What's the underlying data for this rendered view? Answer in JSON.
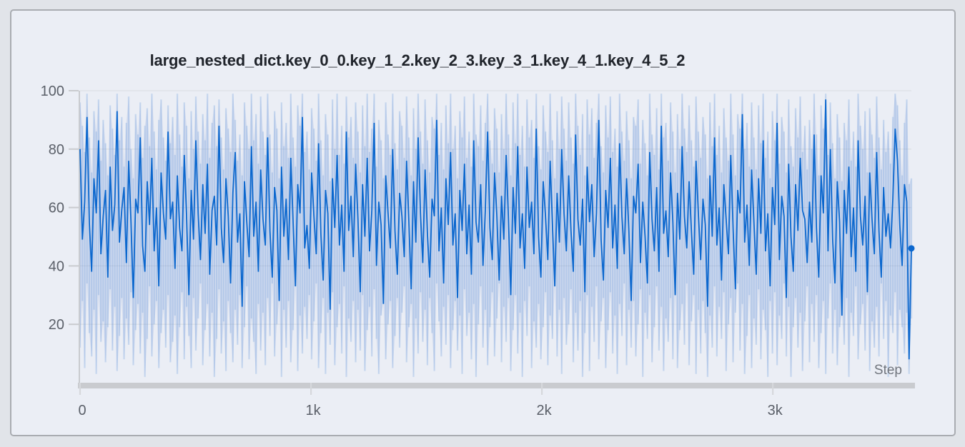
{
  "window": {
    "background": "#e1e4e9"
  },
  "panel": {
    "background": "#ebeef5",
    "border_color": "#a9acb1",
    "title": "large_nested_dict.key_0_0.key_1_2.key_2_3.key_3_1.key_4_1.key_4_5_2"
  },
  "chart_data": {
    "type": "line",
    "title": "large_nested_dict.key_0_0.key_1_2.key_2_3.key_3_1.key_4_1.key_4_5_2",
    "xlabel": "Step",
    "ylabel": "",
    "x_range": [
      0,
      3600
    ],
    "y_range": [
      0,
      100
    ],
    "grid": "horizontal",
    "legend": "none",
    "x_ticks": [
      {
        "value": 0,
        "label": "0"
      },
      {
        "value": 1000,
        "label": "1k"
      },
      {
        "value": 2000,
        "label": "2k"
      },
      {
        "value": 3000,
        "label": "3k"
      }
    ],
    "y_ticks": [
      {
        "value": 20,
        "label": "20"
      },
      {
        "value": 40,
        "label": "40"
      },
      {
        "value": 60,
        "label": "60"
      },
      {
        "value": 80,
        "label": "80"
      },
      {
        "value": 100,
        "label": "100"
      }
    ],
    "line_color": "#0b67ce",
    "band_fill": "rgba(80,130,205,0.15)",
    "band_stripe": "rgba(30,108,208,0.17)",
    "axis_color": "#c9cbcf",
    "grid_color": "#dde0e5",
    "label_color": "#5b6069",
    "series": [
      {
        "name": "value",
        "role": "line",
        "values": [
          80,
          49,
          62,
          91,
          55,
          38,
          70,
          58,
          83,
          44,
          57,
          66,
          36,
          74,
          52,
          61,
          93,
          48,
          59,
          67,
          41,
          76,
          55,
          29,
          63,
          58,
          84,
          47,
          38,
          69,
          54,
          77,
          45,
          60,
          33,
          72,
          58,
          49,
          86,
          56,
          62,
          39,
          71,
          53,
          45,
          78,
          57,
          30,
          66,
          49,
          83,
          58,
          42,
          68,
          51,
          75,
          37,
          59,
          64,
          47,
          88,
          53,
          41,
          70,
          57,
          34,
          65,
          79,
          48,
          58,
          26,
          69,
          55,
          43,
          81,
          50,
          62,
          38,
          73,
          56,
          47,
          84,
          52,
          36,
          67,
          59,
          28,
          74,
          50,
          63,
          42,
          77,
          55,
          33,
          68,
          58,
          91,
          46,
          54,
          39,
          72,
          57,
          44,
          82,
          51,
          35,
          66,
          58,
          25,
          70,
          53,
          78,
          47,
          61,
          38,
          86,
          52,
          64,
          43,
          75,
          56,
          31,
          68,
          50,
          77,
          45,
          59,
          89,
          40,
          62,
          54,
          27,
          71,
          58,
          46,
          80,
          52,
          37,
          65,
          57,
          43,
          76,
          55,
          32,
          69,
          48,
          84,
          58,
          41,
          73,
          51,
          36,
          63,
          57,
          90,
          45,
          60,
          34,
          70,
          54,
          79,
          47,
          58,
          29,
          66,
          52,
          75,
          44,
          61,
          37,
          83,
          55,
          48,
          68,
          40,
          59,
          86,
          53,
          42,
          72,
          57,
          35,
          64,
          49,
          78,
          56,
          30,
          67,
          51,
          81,
          46,
          58,
          39,
          74,
          53,
          62,
          44,
          87,
          50,
          36,
          69,
          57,
          42,
          76,
          54,
          33,
          65,
          48,
          80,
          58,
          45,
          71,
          52,
          38,
          85,
          56,
          47,
          63,
          31,
          74,
          55,
          68,
          43,
          58,
          90,
          49,
          35,
          66,
          53,
          77,
          46,
          61,
          39,
          82,
          57,
          44,
          70,
          52,
          28,
          64,
          58,
          75,
          41,
          62,
          50,
          34,
          79,
          56,
          45,
          67,
          38,
          88,
          51,
          59,
          43,
          72,
          55,
          30,
          65,
          49,
          81,
          57,
          46,
          69,
          52,
          37,
          76,
          58,
          42,
          63,
          54,
          26,
          71,
          50,
          84,
          47,
          60,
          35,
          68,
          56,
          44,
          78,
          53,
          32,
          66,
          58,
          92,
          48,
          61,
          40,
          73,
          55,
          37,
          70,
          51,
          83,
          45,
          58,
          33,
          67,
          54,
          89,
          42,
          64,
          57,
          29,
          75,
          50,
          38,
          68,
          52,
          77,
          59,
          56,
          41,
          62,
          48,
          85,
          53,
          36,
          71,
          58,
          97,
          45,
          80,
          49,
          34,
          69,
          55,
          23,
          66,
          51,
          74,
          43,
          60,
          38,
          83,
          57,
          47,
          64,
          31,
          72,
          56,
          44,
          79,
          52,
          36,
          67,
          50,
          58,
          46,
          63,
          87,
          76,
          54,
          40,
          68,
          62,
          8,
          46
        ]
      },
      {
        "name": "max",
        "role": "band-upper",
        "values": [
          96,
          88,
          79,
          99,
          84,
          72,
          93,
          86,
          97,
          76,
          90,
          82,
          71,
          95,
          87,
          78,
          99,
          83,
          91,
          74,
          89,
          98,
          80,
          70,
          92,
          85,
          96,
          77,
          88,
          94,
          81,
          99,
          86,
          73,
          90,
          97,
          84,
          76,
          95,
          82,
          91,
          78,
          99,
          85,
          74,
          96,
          88,
          70,
          93,
          80,
          98,
          86,
          75,
          92,
          83,
          99,
          77,
          89,
          95,
          81,
          97,
          84,
          73,
          94,
          87,
          79,
          99,
          90,
          76,
          85,
          71,
          96,
          88,
          80,
          99,
          83,
          92,
          75,
          98,
          86,
          78,
          99,
          85,
          72,
          93,
          87,
          70,
          96,
          81,
          89,
          77,
          99,
          84,
          74,
          95,
          88,
          99,
          79,
          86,
          73,
          94,
          87,
          76,
          99,
          83,
          71,
          92,
          85,
          69,
          97,
          80,
          99,
          78,
          88,
          75,
          98,
          84,
          91,
          77,
          96,
          86,
          72,
          95,
          81,
          99,
          79,
          87,
          99,
          74,
          90,
          83,
          70,
          96,
          85,
          78,
          99,
          82,
          73,
          93,
          88,
          77,
          98,
          84,
          71,
          94,
          80,
          99,
          86,
          75,
          97,
          83,
          72,
          91,
          87,
          99,
          78,
          89,
          73,
          95,
          82,
          99,
          80,
          88,
          70,
          93,
          84,
          98,
          77,
          86,
          74,
          99,
          85,
          81,
          95,
          76,
          89,
          99,
          83,
          75,
          94,
          87,
          72,
          92,
          80,
          99,
          85,
          71,
          96,
          82,
          99,
          78,
          88,
          74,
          97,
          84,
          90,
          77,
          99,
          81,
          73,
          95,
          86,
          79,
          99,
          83,
          70,
          93,
          80,
          98,
          87,
          76,
          96,
          84,
          75,
          99,
          88,
          78,
          92,
          71,
          97,
          85,
          94,
          77,
          89,
          99,
          81,
          72,
          95,
          84,
          98,
          79,
          87,
          74,
          99,
          86,
          76,
          93,
          83,
          70,
          91,
          88,
          97,
          75,
          90,
          82,
          71,
          99,
          85,
          78,
          94,
          73,
          99,
          84,
          89,
          76,
          96,
          86,
          72,
          92,
          80,
          99,
          87,
          79,
          95,
          83,
          74,
          98,
          86,
          77,
          91,
          85,
          70,
          96,
          81,
          99,
          78,
          88,
          72,
          94,
          84,
          76,
          99,
          85,
          71,
          92,
          87,
          99,
          80,
          89,
          74,
          96,
          84,
          73,
          95,
          82,
          99,
          77,
          86,
          70,
          93,
          83,
          99,
          75,
          91,
          86,
          72,
          97,
          81,
          74,
          94,
          84,
          98,
          79,
          88,
          73,
          90,
          80,
          99,
          85,
          71,
          95,
          87,
          99,
          78,
          96,
          82,
          70,
          92,
          84,
          69,
          89,
          83,
          97,
          76,
          86,
          74,
          99,
          88,
          80,
          93,
          72,
          94,
          85,
          77,
          98,
          84,
          73,
          90,
          79,
          86,
          75,
          91,
          99,
          95,
          83,
          71,
          89,
          97,
          68,
          70
        ]
      },
      {
        "name": "min",
        "role": "band-lower",
        "values": [
          12,
          28,
          5,
          34,
          17,
          9,
          25,
          3,
          30,
          14,
          21,
          7,
          19,
          32,
          11,
          26,
          4,
          16,
          29,
          8,
          22,
          13,
          31,
          6,
          18,
          27,
          10,
          24,
          2,
          15,
          33,
          9,
          20,
          28,
          5,
          17,
          25,
          12,
          30,
          7,
          14,
          23,
          3,
          19,
          31,
          8,
          26,
          16,
          5,
          29,
          11,
          22,
          34,
          6,
          18,
          27,
          9,
          24,
          2,
          15,
          32,
          10,
          21,
          4,
          28,
          17,
          7,
          25,
          13,
          30,
          5,
          19,
          33,
          8,
          22,
          14,
          3,
          27,
          11,
          24,
          6,
          29,
          16,
          34,
          9,
          20,
          31,
          2,
          25,
          12,
          28,
          7,
          18,
          33,
          4,
          23,
          10,
          26,
          15,
          30,
          8,
          21,
          34,
          5,
          17,
          29,
          3,
          24,
          13,
          31,
          6,
          19,
          27,
          10,
          33,
          2,
          22,
          14,
          28,
          7,
          25,
          11,
          30,
          4,
          18,
          26,
          9,
          32,
          15,
          3,
          23,
          34,
          8,
          20,
          28,
          5,
          16,
          29,
          12,
          24,
          33,
          7,
          19,
          27,
          2,
          22,
          10,
          31,
          14,
          25,
          6,
          29,
          17,
          4,
          34,
          21,
          9,
          26,
          13,
          30,
          5,
          18,
          28,
          11,
          23,
          3,
          32,
          16,
          24,
          8,
          27,
          2,
          20,
          33,
          12,
          25,
          6,
          19,
          31,
          9,
          22,
          34,
          7,
          26,
          14,
          29,
          4,
          18,
          30,
          10,
          24,
          2,
          28,
          16,
          33,
          5,
          21,
          12,
          27,
          8,
          19,
          31,
          6,
          23,
          15,
          34,
          9,
          25,
          3,
          29,
          13,
          20,
          32,
          7,
          24,
          11,
          28,
          2,
          17,
          30,
          4,
          26,
          14,
          33,
          8,
          21,
          29,
          5,
          18,
          31,
          10,
          23,
          3,
          27,
          16,
          34,
          6,
          25,
          12,
          28,
          9,
          20,
          32,
          2,
          24,
          15,
          30,
          7,
          19,
          33,
          11,
          26,
          4,
          22,
          14,
          29,
          8,
          31,
          5,
          18,
          27,
          13,
          34,
          6,
          21,
          30,
          3,
          25,
          10,
          28,
          17,
          2,
          23,
          12,
          33,
          9,
          26,
          15,
          31,
          4,
          20,
          29,
          7,
          24,
          34,
          11,
          27,
          3,
          16,
          30,
          5,
          22,
          13,
          32,
          8,
          25,
          18,
          2,
          28,
          10,
          31,
          6,
          23,
          15,
          34,
          9,
          26,
          2,
          19,
          29,
          12,
          24,
          4,
          21,
          33,
          7,
          27,
          14,
          30,
          5,
          17,
          28,
          3,
          22,
          34,
          10,
          25,
          6,
          19,
          31,
          13,
          29,
          2,
          24,
          16,
          33,
          8,
          20,
          27,
          11,
          30,
          4,
          21,
          12,
          26,
          9,
          34,
          15,
          28,
          2,
          23,
          17,
          31,
          6,
          25,
          19,
          10,
          24,
          3,
          22
        ]
      }
    ],
    "final_point": {
      "x": 3600,
      "y": 46
    }
  }
}
